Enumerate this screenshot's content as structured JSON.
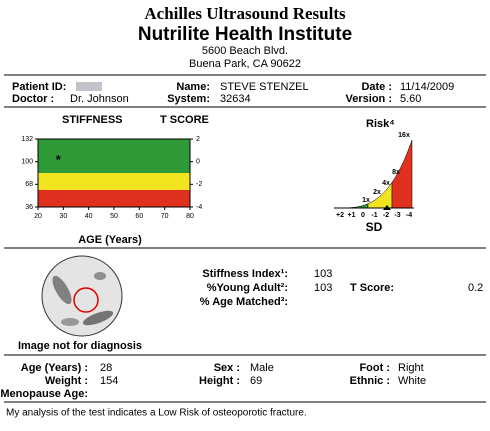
{
  "header": {
    "title": "Achilles Ultrasound Results",
    "institute": "Nutrilite Health Institute",
    "address1": "5600 Beach Blvd.",
    "address2": "Buena Park, CA 90622"
  },
  "patient": {
    "id_label": "Patient ID:",
    "doctor_label": "Doctor :",
    "doctor": "Dr. Johnson",
    "name_label": "Name:",
    "name": "STEVE STENZEL",
    "system_label": "System:",
    "system": "32634",
    "date_label": "Date :",
    "date": "11/14/2009",
    "version_label": "Version :",
    "version": "5.60"
  },
  "stiffness_chart": {
    "title": "STIFFNESS",
    "title_right": "T SCORE",
    "x_label": "AGE (Years)",
    "ylim": [
      36,
      132
    ],
    "yticks": [
      36,
      68,
      100,
      132
    ],
    "y2lim": [
      -4,
      2
    ],
    "y2ticks": [
      -4,
      -2,
      0,
      2
    ],
    "xlim": [
      20,
      80
    ],
    "xticks": [
      20,
      30,
      40,
      50,
      60,
      70,
      80
    ],
    "bands": [
      {
        "from": 2,
        "to": -1,
        "color": "#2f9a37"
      },
      {
        "from": -1,
        "to": -2.5,
        "color": "#f2e51f"
      },
      {
        "from": -2.5,
        "to": -4,
        "color": "#e0301e"
      }
    ],
    "point": {
      "x": 28,
      "y": 103
    }
  },
  "risk_chart": {
    "title": "Risk⁴",
    "x_labels": [
      "+2",
      "+1",
      "0",
      "-1",
      "-2",
      "-3",
      "-4"
    ],
    "x_label": "SD",
    "multipliers": [
      "1x",
      "2x",
      "4x",
      "8x",
      "16x"
    ]
  },
  "image_caption": "Image not for diagnosis",
  "results": {
    "stiffness_label": "Stiffness Index¹:",
    "stiffness": "103",
    "young_label": "%Young Adult²:",
    "young": "103",
    "age_label": "% Age Matched³:",
    "tscore_label": "T Score:",
    "tscore": "0.2"
  },
  "demographics": {
    "age_label": "Age (Years) :",
    "age": "28",
    "weight_label": "Weight :",
    "weight": "154",
    "menopause_label": "Menopause Age:",
    "sex_label": "Sex :",
    "sex": "Male",
    "height_label": "Height :",
    "height": "69",
    "foot_label": "Foot :",
    "foot": "Right",
    "ethnic_label": "Ethnic :",
    "ethnic": "White"
  },
  "conclusion": "My analysis of the test indicates a Low Risk of osteoporotic fracture."
}
